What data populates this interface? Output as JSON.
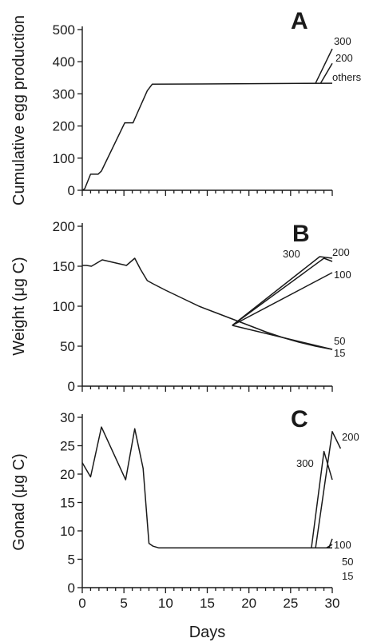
{
  "chart_data": [
    {
      "type": "line",
      "panel_label": "A",
      "xlabel": "",
      "ylabel": "Cumulative egg production",
      "xlim": [
        0,
        30
      ],
      "ylim": [
        0,
        500
      ],
      "yticks": [
        0,
        100,
        200,
        300,
        400,
        500
      ],
      "xticks": [
        0,
        5,
        10,
        15,
        20,
        25,
        30
      ],
      "show_x_tick_labels": false,
      "grid": false,
      "series": [
        {
          "label": "others",
          "x": [
            0,
            0.3,
            1,
            1.9,
            2.3,
            5.1,
            5.5,
            6.1,
            6.6,
            7.8,
            8.4,
            30
          ],
          "y": [
            0,
            5,
            50,
            50,
            60,
            210,
            210,
            210,
            240,
            310,
            330,
            333
          ]
        },
        {
          "label": "200",
          "x": [
            28.6,
            30
          ],
          "y": [
            333,
            395
          ]
        },
        {
          "label": "300",
          "x": [
            28.0,
            30
          ],
          "y": [
            333,
            440
          ]
        }
      ]
    },
    {
      "type": "line",
      "panel_label": "B",
      "xlabel": "",
      "ylabel": "Weight (μg C)",
      "xlim": [
        0,
        30
      ],
      "ylim": [
        0,
        200
      ],
      "yticks": [
        0,
        50,
        100,
        150,
        200
      ],
      "xticks": [
        0,
        5,
        10,
        15,
        20,
        25,
        30
      ],
      "show_x_tick_labels": false,
      "grid": false,
      "series": [
        {
          "label": "50",
          "x": [
            0,
            0.5,
            1.1,
            2.4,
            5.3,
            6.3,
            7.0,
            7.8,
            8.5,
            10,
            12,
            14,
            16,
            18,
            20,
            22,
            24,
            26,
            28,
            30
          ],
          "y": [
            151,
            151,
            150,
            158,
            151,
            160,
            146,
            132,
            128,
            120,
            110,
            100,
            92,
            84,
            76,
            68,
            61,
            55,
            50,
            46
          ]
        },
        {
          "label": "15",
          "x": [
            18,
            30
          ],
          "y": [
            76,
            46
          ]
        },
        {
          "label": "100",
          "x": [
            18,
            30
          ],
          "y": [
            76,
            142
          ]
        },
        {
          "label": "200",
          "x": [
            18,
            29,
            30
          ],
          "y": [
            76,
            160,
            156
          ]
        },
        {
          "label": "300",
          "x": [
            18,
            28.5,
            30
          ],
          "y": [
            76,
            162,
            160
          ]
        }
      ]
    },
    {
      "type": "line",
      "panel_label": "C",
      "xlabel": "Days",
      "ylabel": "Gonad (μg C)",
      "xlim": [
        0,
        30
      ],
      "ylim": [
        0,
        30
      ],
      "yticks": [
        0,
        5,
        10,
        15,
        20,
        25,
        30
      ],
      "xticks": [
        0,
        5,
        10,
        15,
        20,
        25,
        30
      ],
      "show_x_tick_labels": true,
      "grid": false,
      "series": [
        {
          "label": "15",
          "x": [
            0,
            1,
            2.3,
            5.2,
            6.3,
            7.3,
            8.0,
            8.5,
            9.2,
            30
          ],
          "y": [
            22,
            19.5,
            28.3,
            19,
            28,
            21,
            7.8,
            7.3,
            7,
            7
          ]
        },
        {
          "label": "50",
          "x": [
            29.3,
            30
          ],
          "y": [
            7,
            7.6
          ]
        },
        {
          "label": "100",
          "x": [
            29.6,
            30
          ],
          "y": [
            7,
            8.6
          ]
        },
        {
          "label": "300",
          "x": [
            27.5,
            29,
            30
          ],
          "y": [
            7,
            24,
            19
          ]
        },
        {
          "label": "200",
          "x": [
            28.0,
            30,
            31
          ],
          "y": [
            7,
            27.5,
            24.5
          ]
        }
      ]
    }
  ]
}
